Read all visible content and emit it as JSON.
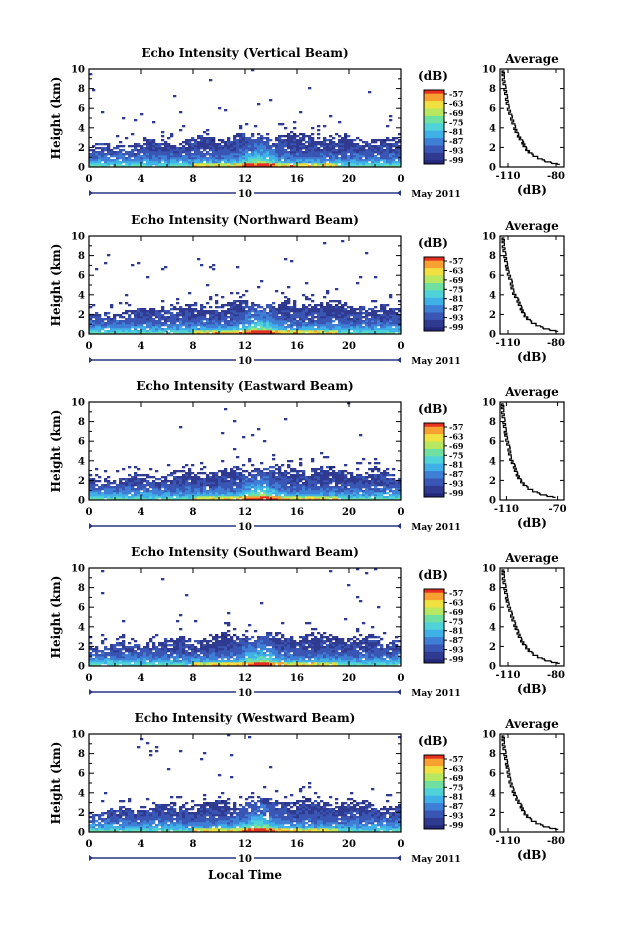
{
  "figure": {
    "date_label": "May 2011",
    "xlabel_bottom": "Local Time",
    "colors": {
      "low": "#2b2f80",
      "mid": "#3fb8e8",
      "high": "#f0e040",
      "top": "#e83020"
    }
  },
  "chart_data": [
    {
      "type": "heatmap",
      "title": "Echo Intensity (Vertical Beam)",
      "xlabel": "",
      "ylabel": "Height (km)",
      "x_ticks": [
        "0",
        "4",
        "8",
        "12",
        "16",
        "20",
        "0"
      ],
      "y_ticks": [
        "0",
        "2",
        "4",
        "6",
        "8",
        "10"
      ],
      "xlim": [
        0,
        24
      ],
      "ylim": [
        0,
        10
      ],
      "day_marker": "10",
      "colorbar": {
        "title": "(dB)",
        "ticks": [
          "-57",
          "-63",
          "-69",
          "-75",
          "-81",
          "-87",
          "-93",
          "-99"
        ]
      },
      "average": {
        "title": "Average",
        "xlabel": "(dB)",
        "x_ticks": [
          "-110",
          "-80"
        ],
        "y_ticks": [
          "0",
          "2",
          "4",
          "6",
          "8",
          "10"
        ],
        "xlim": [
          -115,
          -75
        ],
        "ylim": [
          0,
          10
        ],
        "profile": [
          [
            -78,
            0.2
          ],
          [
            -88,
            0.6
          ],
          [
            -95,
            1.2
          ],
          [
            -99,
            1.8
          ],
          [
            -101,
            2.5
          ],
          [
            -104,
            3.2
          ],
          [
            -106,
            4.0
          ],
          [
            -108,
            5.0
          ],
          [
            -110,
            6.0
          ],
          [
            -111,
            7.0
          ],
          [
            -112,
            8.0
          ],
          [
            -113,
            9.0
          ],
          [
            -113,
            9.8
          ]
        ]
      }
    },
    {
      "type": "heatmap",
      "title": "Echo Intensity (Northward Beam)",
      "xlabel": "",
      "ylabel": "Height (km)",
      "x_ticks": [
        "0",
        "4",
        "8",
        "12",
        "16",
        "20",
        "0"
      ],
      "y_ticks": [
        "0",
        "2",
        "4",
        "6",
        "8",
        "10"
      ],
      "xlim": [
        0,
        24
      ],
      "ylim": [
        0,
        10
      ],
      "day_marker": "10",
      "colorbar": {
        "title": "(dB)",
        "ticks": [
          "-57",
          "-63",
          "-69",
          "-75",
          "-81",
          "-87",
          "-93",
          "-99"
        ]
      },
      "average": {
        "title": "Average",
        "xlabel": "(dB)",
        "x_ticks": [
          "-110",
          "-80"
        ],
        "y_ticks": [
          "0",
          "2",
          "4",
          "6",
          "8",
          "10"
        ],
        "xlim": [
          -115,
          -75
        ],
        "ylim": [
          0,
          10
        ],
        "profile": [
          [
            -79,
            0.2
          ],
          [
            -89,
            0.6
          ],
          [
            -96,
            1.2
          ],
          [
            -100,
            1.9
          ],
          [
            -102,
            2.6
          ],
          [
            -104,
            3.4
          ],
          [
            -107,
            4.2
          ],
          [
            -108,
            5.2
          ],
          [
            -110,
            6.2
          ],
          [
            -111,
            7.0
          ],
          [
            -112,
            8.0
          ],
          [
            -113,
            9.0
          ],
          [
            -113,
            9.8
          ]
        ]
      }
    },
    {
      "type": "heatmap",
      "title": "Echo Intensity (Eastward Beam)",
      "xlabel": "",
      "ylabel": "Height (km)",
      "x_ticks": [
        "0",
        "4",
        "8",
        "12",
        "16",
        "20",
        "0"
      ],
      "y_ticks": [
        "0",
        "2",
        "4",
        "6",
        "8",
        "10"
      ],
      "xlim": [
        0,
        24
      ],
      "ylim": [
        0,
        10
      ],
      "day_marker": "10",
      "colorbar": {
        "title": "(dB)",
        "ticks": [
          "-57",
          "-63",
          "-69",
          "-75",
          "-81",
          "-87",
          "-93",
          "-99"
        ]
      },
      "average": {
        "title": "Average",
        "xlabel": "(dB)",
        "x_ticks": [
          "-110",
          "-70"
        ],
        "y_ticks": [
          "0",
          "2",
          "4",
          "6",
          "8",
          "10"
        ],
        "xlim": [
          -115,
          -65
        ],
        "ylim": [
          0,
          10
        ],
        "profile": [
          [
            -72,
            0.2
          ],
          [
            -85,
            0.6
          ],
          [
            -94,
            1.2
          ],
          [
            -99,
            1.9
          ],
          [
            -102,
            2.6
          ],
          [
            -104,
            3.4
          ],
          [
            -107,
            4.2
          ],
          [
            -108,
            5.2
          ],
          [
            -110,
            6.2
          ],
          [
            -111,
            7.0
          ],
          [
            -112,
            8.0
          ],
          [
            -113,
            9.0
          ],
          [
            -113,
            9.8
          ]
        ]
      }
    },
    {
      "type": "heatmap",
      "title": "Echo Intensity (Southward Beam)",
      "xlabel": "",
      "ylabel": "Height (km)",
      "x_ticks": [
        "0",
        "4",
        "8",
        "12",
        "16",
        "20",
        "0"
      ],
      "y_ticks": [
        "0",
        "2",
        "4",
        "6",
        "8",
        "10"
      ],
      "xlim": [
        0,
        24
      ],
      "ylim": [
        0,
        10
      ],
      "day_marker": "10",
      "colorbar": {
        "title": "(dB)",
        "ticks": [
          "-57",
          "-63",
          "-69",
          "-75",
          "-81",
          "-87",
          "-93",
          "-99"
        ]
      },
      "average": {
        "title": "Average",
        "xlabel": "(dB)",
        "x_ticks": [
          "-110",
          "-80"
        ],
        "y_ticks": [
          "0",
          "2",
          "4",
          "6",
          "8",
          "10"
        ],
        "xlim": [
          -115,
          -75
        ],
        "ylim": [
          0,
          10
        ],
        "profile": [
          [
            -78,
            0.2
          ],
          [
            -88,
            0.6
          ],
          [
            -95,
            1.2
          ],
          [
            -99,
            1.9
          ],
          [
            -102,
            2.6
          ],
          [
            -104,
            3.4
          ],
          [
            -106,
            4.2
          ],
          [
            -108,
            5.2
          ],
          [
            -110,
            6.2
          ],
          [
            -111,
            7.0
          ],
          [
            -112,
            8.0
          ],
          [
            -113,
            9.0
          ],
          [
            -113,
            9.8
          ]
        ]
      }
    },
    {
      "type": "heatmap",
      "title": "Echo Intensity (Westward Beam)",
      "xlabel": "",
      "ylabel": "Height (km)",
      "x_ticks": [
        "0",
        "4",
        "8",
        "12",
        "16",
        "20",
        "0"
      ],
      "y_ticks": [
        "0",
        "2",
        "4",
        "6",
        "8",
        "10"
      ],
      "xlim": [
        0,
        24
      ],
      "ylim": [
        0,
        10
      ],
      "day_marker": "10",
      "colorbar": {
        "title": "(dB)",
        "ticks": [
          "-57",
          "-63",
          "-69",
          "-75",
          "-81",
          "-87",
          "-93",
          "-99"
        ]
      },
      "average": {
        "title": "Average",
        "xlabel": "(dB)",
        "x_ticks": [
          "-110",
          "-80"
        ],
        "y_ticks": [
          "0",
          "2",
          "4",
          "6",
          "8",
          "10"
        ],
        "xlim": [
          -115,
          -75
        ],
        "ylim": [
          0,
          10
        ],
        "profile": [
          [
            -79,
            0.2
          ],
          [
            -89,
            0.6
          ],
          [
            -96,
            1.2
          ],
          [
            -100,
            1.9
          ],
          [
            -102,
            2.6
          ],
          [
            -105,
            3.4
          ],
          [
            -107,
            4.2
          ],
          [
            -109,
            5.2
          ],
          [
            -110,
            6.2
          ],
          [
            -111,
            7.0
          ],
          [
            -112,
            8.0
          ],
          [
            -113,
            9.0
          ],
          [
            -113,
            9.8
          ]
        ]
      }
    }
  ]
}
